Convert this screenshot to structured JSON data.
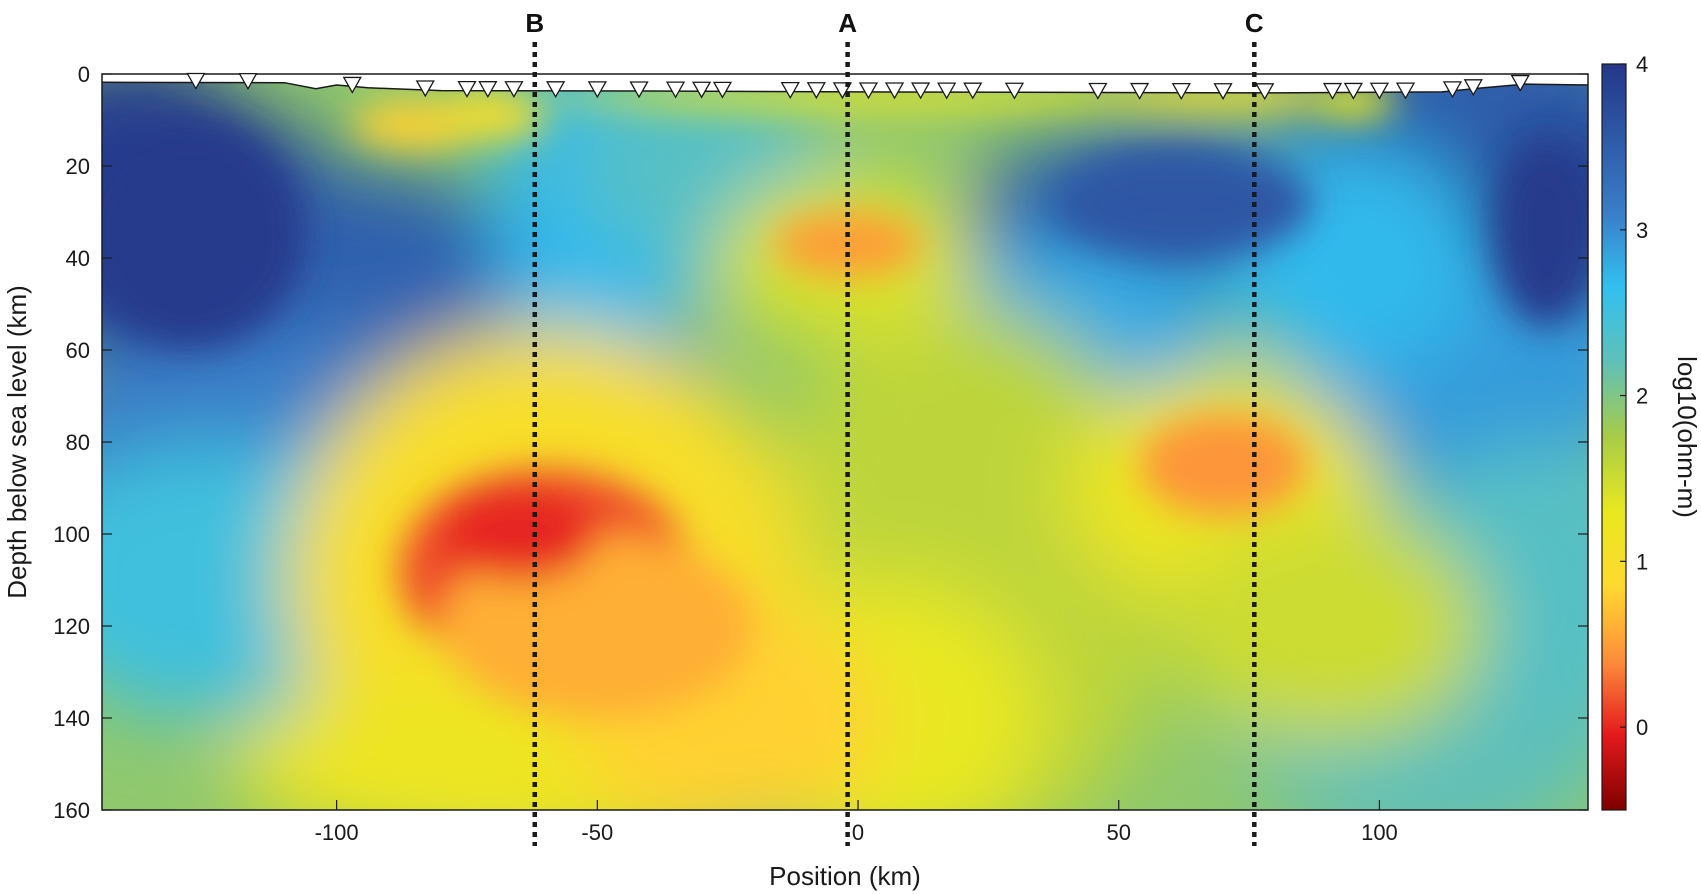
{
  "chart_data": {
    "type": "heatmap",
    "xlabel": "Position (km)",
    "ylabel": "Depth below sea level (km)",
    "colorbar_label": "log10(ohm-m)",
    "xlim": [
      -145,
      140
    ],
    "ylim": [
      0,
      160
    ],
    "y_inverted": true,
    "x_ticks": [
      -100,
      -50,
      0,
      50,
      100
    ],
    "x_tick_labels": [
      "-100",
      "-50",
      "0",
      "50",
      "100"
    ],
    "y_ticks": [
      0,
      20,
      40,
      60,
      80,
      100,
      120,
      140,
      160
    ],
    "y_tick_labels": [
      "0",
      "20",
      "40",
      "60",
      "80",
      "100",
      "120",
      "140",
      "160"
    ],
    "colorbar_range": [
      -0.5,
      4
    ],
    "colorbar_ticks": [
      0,
      1,
      2,
      3,
      4
    ],
    "colorbar_tick_labels": [
      "0",
      "1",
      "2",
      "3",
      "4"
    ],
    "colormap": [
      "#7f0000",
      "#e31a1c",
      "#fd8d3c",
      "#ffd92f",
      "#e8e820",
      "#a8cc48",
      "#60c0b8",
      "#32c0f0",
      "#3a7ec8",
      "#2e5aa8",
      "#253688"
    ],
    "section_lines": [
      {
        "label": "B",
        "x": -62
      },
      {
        "label": "A",
        "x": -2
      },
      {
        "label": "C",
        "x": 76
      }
    ],
    "stations_x": [
      -127,
      -117,
      -97,
      -83,
      -75,
      -71,
      -66,
      -58,
      -50,
      -42,
      -35,
      -30,
      -26,
      -13,
      -8,
      -3,
      2,
      7,
      12,
      17,
      22,
      30,
      46,
      54,
      62,
      70,
      78,
      91,
      95,
      100,
      105,
      114,
      118,
      127
    ],
    "anomalies": [
      {
        "kind": "conductor",
        "center": [
          -60,
          105
        ],
        "value": 0.0
      },
      {
        "kind": "conductor",
        "center": [
          70,
          84
        ],
        "value": 0.4
      },
      {
        "kind": "conductor",
        "center": [
          -2,
          37
        ],
        "value": 0.5
      },
      {
        "kind": "conductor",
        "center": [
          -85,
          10
        ],
        "value": 0.8
      },
      {
        "kind": "resistor",
        "center": [
          -120,
          35
        ],
        "value": 3.9
      },
      {
        "kind": "resistor",
        "center": [
          62,
          30
        ],
        "value": 3.5
      },
      {
        "kind": "resistor",
        "center": [
          130,
          35
        ],
        "value": 3.9
      }
    ]
  }
}
